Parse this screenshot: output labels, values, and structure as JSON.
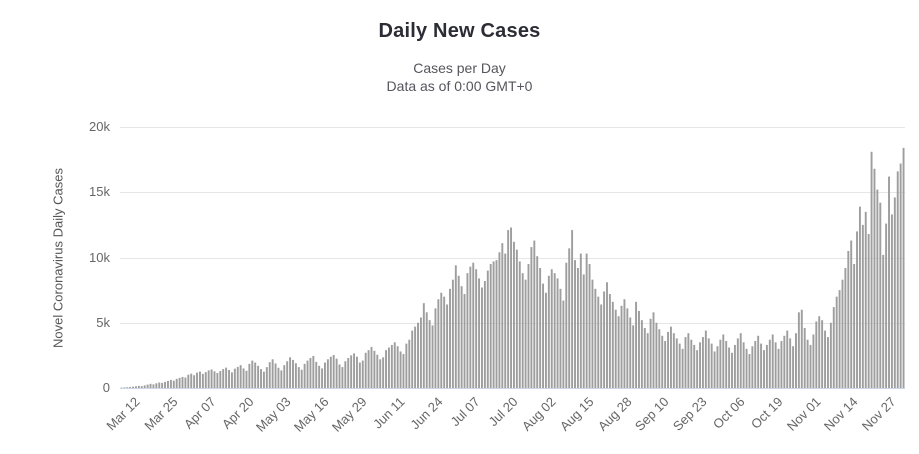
{
  "header": {
    "title": "Daily New Cases",
    "subtitle_line1": "Cases per Day",
    "subtitle_line2": "Data as of 0:00 GMT+0"
  },
  "y_axis": {
    "title": "Novel Coronavirus Daily Cases"
  },
  "colors": {
    "bar": "#9e9e9e",
    "gridline": "#e6e6e6",
    "axis_line": "#ccd6eb",
    "title_text": "#2c2c35",
    "subtitle_text": "#55555d",
    "axis_label_text": "#666666",
    "y_axis_title_text": "#555555"
  },
  "chart_data": {
    "type": "bar",
    "title": "Daily New Cases",
    "subtitle": [
      "Cases per Day",
      "Data as of 0:00 GMT+0"
    ],
    "ylabel": "Novel Coronavirus Daily Cases",
    "xlabel": "",
    "ylim": [
      0,
      20000
    ],
    "grid": "horizontal",
    "legend": "none",
    "yticks": {
      "values": [
        0,
        5000,
        10000,
        15000,
        20000
      ],
      "labels": [
        "0",
        "5k",
        "10k",
        "15k",
        "20k"
      ]
    },
    "xticks": {
      "labels": [
        "Mar 12",
        "Mar 25",
        "Apr 07",
        "Apr 20",
        "May 03",
        "May 16",
        "May 29",
        "Jun 11",
        "Jun 24",
        "Jul 07",
        "Jul 20",
        "Aug 02",
        "Aug 15",
        "Aug 28",
        "Sep 10",
        "Sep 23",
        "Oct 06",
        "Oct 19",
        "Nov 01",
        "Nov 14",
        "Nov 27"
      ],
      "first_label_data_index": 3,
      "label_step_days": 13
    },
    "values": [
      30,
      45,
      60,
      80,
      100,
      130,
      160,
      140,
      200,
      260,
      320,
      280,
      360,
      420,
      390,
      470,
      540,
      620,
      560,
      700,
      780,
      850,
      800,
      1020,
      1100,
      980,
      1180,
      1260,
      1080,
      1220,
      1350,
      1420,
      1280,
      1150,
      1300,
      1450,
      1560,
      1380,
      1200,
      1480,
      1620,
      1750,
      1500,
      1320,
      1850,
      2100,
      1950,
      1700,
      1450,
      1250,
      1600,
      1980,
      2200,
      1880,
      1550,
      1350,
      1750,
      2050,
      2350,
      2150,
      1900,
      1600,
      1400,
      1850,
      2100,
      2300,
      2450,
      2000,
      1700,
      1500,
      1950,
      2200,
      2400,
      2530,
      2250,
      1800,
      1600,
      2050,
      2300,
      2500,
      2650,
      2400,
      1950,
      2100,
      2700,
      2900,
      3150,
      2850,
      2550,
      2200,
      2350,
      2900,
      3100,
      3300,
      3500,
      3200,
      2800,
      2600,
      3400,
      3700,
      4400,
      4700,
      5000,
      5400,
      6500,
      5800,
      5200,
      4800,
      6100,
      6800,
      7300,
      7000,
      6400,
      7600,
      8300,
      9400,
      8600,
      7800,
      7200,
      8800,
      9300,
      9600,
      9100,
      8400,
      7700,
      8200,
      9000,
      9500,
      9700,
      9800,
      10400,
      11100,
      10300,
      12100,
      12300,
      11200,
      10600,
      9700,
      8800,
      8300,
      9500,
      10800,
      11300,
      10100,
      9200,
      8000,
      7300,
      8600,
      9100,
      8800,
      8400,
      7600,
      6700,
      9600,
      10700,
      12100,
      9800,
      9200,
      10300,
      8700,
      10300,
      9500,
      8300,
      7600,
      7000,
      6400,
      7400,
      8100,
      7200,
      6600,
      6000,
      5500,
      6300,
      6800,
      6100,
      5400,
      4800,
      6600,
      5900,
      5200,
      4600,
      4200,
      5300,
      5800,
      5000,
      4500,
      4000,
      3600,
      4300,
      4700,
      4200,
      3800,
      3400,
      3000,
      3900,
      4200,
      3700,
      3300,
      2900,
      3500,
      3900,
      4400,
      3800,
      3400,
      2800,
      3200,
      3700,
      4100,
      3600,
      3100,
      2700,
      3300,
      3800,
      4200,
      3500,
      3000,
      2600,
      3200,
      3600,
      4000,
      3400,
      2900,
      3300,
      3700,
      4100,
      3500,
      3000,
      3600,
      4000,
      4400,
      3800,
      3200,
      4200,
      5800,
      6000,
      4600,
      3700,
      3300,
      4100,
      5100,
      5500,
      5200,
      4400,
      3900,
      5000,
      6200,
      7000,
      7500,
      8300,
      9200,
      10500,
      11300,
      9500,
      12000,
      13900,
      12500,
      13500,
      11800,
      18100,
      16800,
      15200,
      14200,
      10200,
      12600,
      16200,
      13300,
      14600,
      16600,
      17200,
      18400
    ]
  }
}
